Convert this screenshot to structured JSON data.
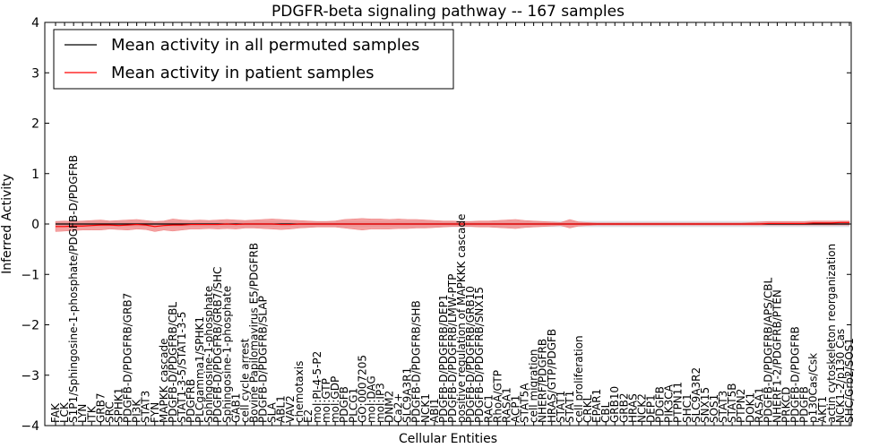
{
  "chart_data": {
    "type": "line",
    "title": "PDGFR-beta signaling pathway -- 167 samples",
    "xlabel": "Cellular Entities",
    "ylabel": "Inferred Activity",
    "ylim": [
      -4,
      4
    ],
    "yticks": [
      "−4",
      "−3",
      "−2",
      "−1",
      "0",
      "1",
      "2",
      "3",
      "4"
    ],
    "legend": {
      "position": "top-left",
      "entries": [
        {
          "label": "Mean activity in all permuted samples",
          "color": "#000000"
        },
        {
          "label": "Mean activity in patient samples",
          "color": "#ff0000"
        }
      ]
    },
    "colors": {
      "patient_line": "#ff0000",
      "patient_band": "#f08080",
      "permuted_line": "#000000",
      "permuted_band": "#c8c8d2"
    },
    "entities": [
      "FAK",
      "LCK",
      "S1P1/Sphingosine-1-phosphate/PDGFB-D/PDGFRB",
      "LYN",
      "ITK",
      "GRB7",
      "SRC",
      "SPHK1",
      "PDGFB-D/PDGFRB/GRB7",
      "PI3K",
      "STAT3",
      "FYN",
      "MAPKK cascade",
      "PDGFB-D/PDGFRB/CBL",
      "STAT1-3-5/STAT1-3-5",
      "PDGFRB",
      "PLCgamma1/SPHK1",
      "Sphingosine-1-phosphate",
      "PDGFB-D/PDGFRB/GRB7/SHC",
      "Sphingosine-1-phosphate",
      "GAB1",
      "cell cycle arrest",
      "Bovine Papilomavirus E5/PDGFRB",
      "PDGFB-D/PDGFRB/SLAP",
      "SLA",
      "ABL1",
      "VAV2",
      "chemotaxis",
      "E2",
      "mol:PI-4-5-P2",
      "mol:GTP",
      "mol:GDP",
      "PDGFB",
      "PLCG1",
      "GO:0007205",
      "mol:DAG",
      "mol:IP3",
      "DNM2",
      "Ca2+",
      "SLC9A3R1",
      "PDGFB-D/PDGFRB/SHB",
      "NCK1",
      "ABI1",
      "PDGFB-D/PDGFRB/DEP1",
      "PDGFB-D/PDGFRB/LMW-PTP",
      "positive regulation of MAPKKK cascade",
      "PDGFB-D/PDGFRB/GRB10",
      "PDGFB-D/PDGFRB/SNX15",
      "RAC1",
      "RhoA/GTP",
      "RASA1",
      "ACP1",
      "STAT5A",
      "cell migration",
      "NHERF/PDGFRB",
      "HRAS/GTP/PDGFB",
      "STAT1",
      "STAT1",
      "cell proliferation",
      "CRKL",
      "EPAR1",
      "CBL",
      "GRB10",
      "GRB2",
      "HRAS",
      "NCK2",
      "DEP1",
      "PDGFB",
      "PIK3CA",
      "PTPN11",
      "SHC1",
      "SLC9A3R2",
      "SNX15",
      "SOS1",
      "STAT3",
      "STAT5B",
      "PTPN2",
      "DOK1",
      "RASA1",
      "PDGFB-D/PDGFRB/APS/CBL",
      "NHERF1-2/PDGFRB/PTEN",
      "PRKCD",
      "PDGFB-D/PDGFRB",
      "PDGFB",
      "p130Cas/Csk",
      "AKT1",
      "actin cytoskeleton reorganization",
      "NCK1-2/p130 Cas",
      "SHC/Grb2/SOS1"
    ],
    "mean_patient": [
      -0.05,
      -0.05,
      -0.04,
      -0.04,
      -0.03,
      -0.02,
      -0.02,
      -0.03,
      -0.02,
      -0.01,
      -0.02,
      -0.05,
      -0.03,
      -0.02,
      -0.02,
      -0.01,
      -0.01,
      -0.01,
      -0.01,
      0.0,
      -0.01,
      0.0,
      0.0,
      0.0,
      0.0,
      -0.01,
      -0.01,
      0.0,
      0.0,
      0.0,
      0.0,
      0.0,
      0.0,
      0.0,
      0.0,
      0.0,
      0.0,
      0.0,
      0.0,
      0.0,
      0.0,
      0.0,
      0.0,
      0.0,
      0.0,
      0.0,
      0.0,
      0.0,
      0.0,
      0.0,
      0.0,
      0.0,
      0.0,
      0.0,
      0.0,
      0.0,
      0.0,
      0.0,
      0.0,
      0.0,
      0.0,
      0.0,
      0.0,
      0.0,
      0.0,
      0.0,
      0.0,
      0.0,
      0.0,
      0.0,
      0.0,
      0.0,
      0.0,
      0.0,
      0.0,
      0.0,
      0.0,
      0.0,
      0.0,
      0.01,
      0.01,
      0.01,
      0.01,
      0.01,
      0.02,
      0.02,
      0.02,
      0.03,
      0.03
    ],
    "patient_upper": [
      0.05,
      0.06,
      0.05,
      0.06,
      0.07,
      0.08,
      0.06,
      0.07,
      0.08,
      0.09,
      0.07,
      0.05,
      0.06,
      0.1,
      0.08,
      0.07,
      0.08,
      0.07,
      0.08,
      0.09,
      0.08,
      0.07,
      0.08,
      0.09,
      0.1,
      0.09,
      0.08,
      0.07,
      0.06,
      0.05,
      0.05,
      0.06,
      0.09,
      0.1,
      0.11,
      0.1,
      0.1,
      0.09,
      0.1,
      0.09,
      0.09,
      0.08,
      0.07,
      0.06,
      0.06,
      0.05,
      0.05,
      0.06,
      0.06,
      0.07,
      0.08,
      0.09,
      0.07,
      0.06,
      0.05,
      0.04,
      0.03,
      0.09,
      0.04,
      0.03,
      0.02,
      0.02,
      0.02,
      0.02,
      0.02,
      0.02,
      0.02,
      0.02,
      0.02,
      0.02,
      0.02,
      0.02,
      0.02,
      0.02,
      0.02,
      0.02,
      0.02,
      0.03,
      0.04,
      0.05,
      0.05,
      0.05,
      0.05,
      0.05,
      0.06,
      0.06,
      0.06,
      0.06,
      0.06
    ],
    "patient_lower": [
      -0.15,
      -0.14,
      -0.13,
      -0.12,
      -0.12,
      -0.12,
      -0.1,
      -0.11,
      -0.12,
      -0.1,
      -0.11,
      -0.15,
      -0.12,
      -0.14,
      -0.12,
      -0.1,
      -0.1,
      -0.09,
      -0.1,
      -0.09,
      -0.1,
      -0.08,
      -0.08,
      -0.09,
      -0.1,
      -0.11,
      -0.1,
      -0.08,
      -0.07,
      -0.06,
      -0.06,
      -0.06,
      -0.08,
      -0.1,
      -0.12,
      -0.1,
      -0.1,
      -0.1,
      -0.09,
      -0.09,
      -0.08,
      -0.08,
      -0.07,
      -0.06,
      -0.05,
      -0.05,
      -0.05,
      -0.06,
      -0.06,
      -0.07,
      -0.08,
      -0.09,
      -0.07,
      -0.06,
      -0.05,
      -0.04,
      -0.03,
      -0.08,
      -0.04,
      -0.03,
      -0.02,
      -0.02,
      -0.02,
      -0.02,
      -0.02,
      -0.02,
      -0.02,
      -0.02,
      -0.02,
      -0.02,
      -0.02,
      -0.02,
      -0.02,
      -0.02,
      -0.02,
      -0.02,
      -0.02,
      -0.02,
      -0.02,
      -0.02,
      -0.02,
      -0.02,
      -0.02,
      -0.02,
      -0.02,
      -0.02,
      -0.02,
      -0.02,
      -0.02
    ],
    "mean_permuted": [
      0.0,
      0.0,
      0.0,
      0.0,
      0.0,
      0.0,
      0.0,
      0.0,
      0.0,
      0.0,
      0.0,
      0.0,
      0.0,
      0.0,
      0.0,
      0.0,
      0.0,
      0.0,
      0.0,
      0.0,
      0.0,
      0.0,
      0.0,
      0.0,
      0.0,
      0.0,
      0.0,
      0.0,
      0.0,
      0.0,
      0.0,
      0.0,
      0.0,
      0.0,
      0.0,
      0.0,
      0.0,
      0.0,
      0.0,
      0.0,
      0.0,
      0.0,
      0.0,
      0.0,
      0.0,
      0.0,
      0.0,
      0.0,
      0.0,
      0.0,
      0.0,
      0.0,
      0.0,
      0.0,
      0.0,
      0.0,
      0.0,
      0.0,
      0.0,
      0.0,
      0.0,
      0.0,
      0.0,
      0.0,
      0.0,
      0.0,
      0.0,
      0.0,
      0.0,
      0.0,
      0.0,
      0.0,
      0.0,
      0.0,
      0.0,
      0.0,
      0.0,
      0.0,
      0.0,
      0.0,
      0.0,
      0.0,
      0.0,
      0.0,
      0.0,
      0.0,
      0.0,
      0.0,
      0.0
    ],
    "permuted_band_half_width": 0.06
  }
}
